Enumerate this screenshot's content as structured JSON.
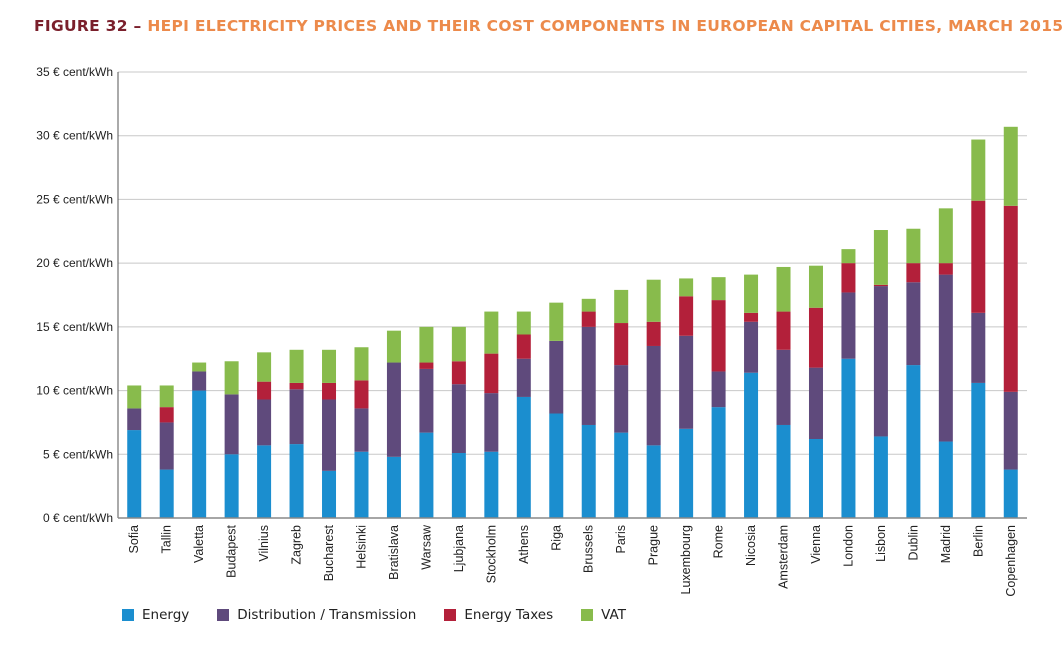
{
  "chart_data": {
    "type": "bar",
    "stacked": true,
    "title_prefix": "FIGURE 32 –",
    "title": "HEPI ELECTRICITY PRICES AND THEIR COST COMPONENTS IN EUROPEAN CAPITAL CITIES, MARCH 2015",
    "xlabel": "",
    "ylabel": "",
    "ylim": [
      0,
      35
    ],
    "yticks": [
      0,
      5,
      10,
      15,
      20,
      25,
      30,
      35
    ],
    "ytick_labels": [
      "0 € cent/kWh",
      "5 € cent/kWh",
      "10 € cent/kWh",
      "15 € cent/kWh",
      "20 € cent/kWh",
      "25 € cent/kWh",
      "30 € cent/kWh",
      "35 € cent/kWh"
    ],
    "grid": true,
    "legend_position": "bottom",
    "categories": [
      "Sofia",
      "Tallin",
      "Valetta",
      "Budapest",
      "Vilnius",
      "Zagreb",
      "Bucharest",
      "Helsinki",
      "Bratislava",
      "Warsaw",
      "Ljubjana",
      "Stockholm",
      "Athens",
      "Riga",
      "Brussels",
      "Paris",
      "Prague",
      "Luxembourg",
      "Rome",
      "Nicosia",
      "Amsterdam",
      "Vienna",
      "London",
      "Lisbon",
      "Dublin",
      "Madrid",
      "Berlin",
      "Copenhagen"
    ],
    "series": [
      {
        "name": "Energy",
        "color": "#1b8ecf",
        "values": [
          6.9,
          3.8,
          10.0,
          5.0,
          5.7,
          5.8,
          3.7,
          5.2,
          4.8,
          6.7,
          5.1,
          5.2,
          9.5,
          8.2,
          7.3,
          6.7,
          5.7,
          7.0,
          8.7,
          11.4,
          7.3,
          6.2,
          12.5,
          6.4,
          12.0,
          6.0,
          10.6,
          3.8
        ]
      },
      {
        "name": "Distribution / Transmission",
        "color": "#5f4a7c",
        "values": [
          1.7,
          3.7,
          1.5,
          4.7,
          3.6,
          4.3,
          5.6,
          3.4,
          7.4,
          5.0,
          5.4,
          4.6,
          3.0,
          5.7,
          7.7,
          5.3,
          7.8,
          7.3,
          2.8,
          4.0,
          5.9,
          5.6,
          5.2,
          11.8,
          6.5,
          13.1,
          5.5,
          6.1
        ]
      },
      {
        "name": "Energy Taxes",
        "color": "#b3203a",
        "values": [
          0,
          1.2,
          0,
          0,
          1.4,
          0.5,
          1.3,
          2.2,
          0,
          0.5,
          1.8,
          3.1,
          1.9,
          0,
          1.2,
          3.3,
          1.9,
          3.1,
          5.6,
          0.7,
          3.0,
          4.7,
          2.3,
          0.1,
          1.5,
          0.9,
          8.8,
          14.6
        ]
      },
      {
        "name": "VAT",
        "color": "#88bb4c",
        "values": [
          1.8,
          1.7,
          0.7,
          2.6,
          2.3,
          2.6,
          2.6,
          2.6,
          2.5,
          2.8,
          2.7,
          3.3,
          1.8,
          3.0,
          1.0,
          2.6,
          3.3,
          1.4,
          1.8,
          3.0,
          3.5,
          3.3,
          1.1,
          4.3,
          2.7,
          4.3,
          4.8,
          6.2
        ]
      }
    ]
  }
}
